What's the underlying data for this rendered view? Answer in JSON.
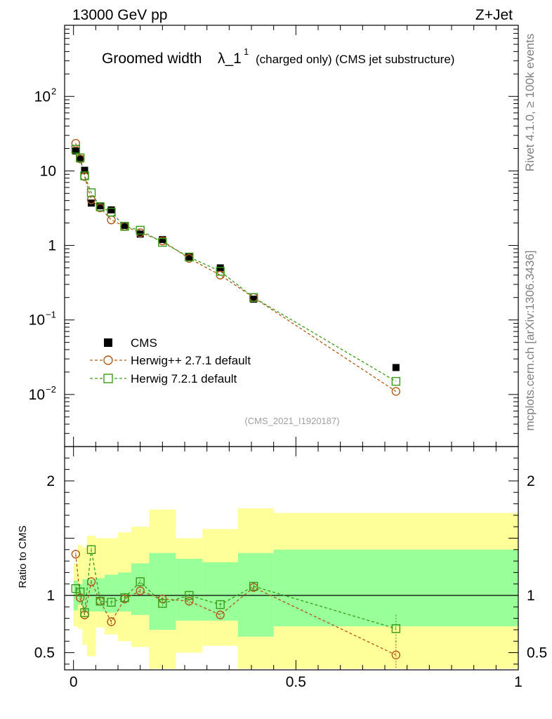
{
  "header": {
    "left": "13000 GeV pp",
    "right": "Z+Jet"
  },
  "plot_title": {
    "main": "Groomed width",
    "lambda": "λ_1",
    "sup": "1",
    "note": "(charged only) (CMS jet substructure)"
  },
  "side_texts": {
    "rivet": "Rivet 4.1.0, ≥ 100k events",
    "mcplots": "mcplots.cern.ch [arXiv:1306.3436]"
  },
  "analysis_id": "(CMS_2021_I1920187)",
  "ratio_ylabel": "Ratio to CMS",
  "colors": {
    "data": "#000000",
    "herwigpp": "#b05a1a",
    "herwig7": "#3a9a1a",
    "band_outer": "#ffff99",
    "band_inner": "#99ff99"
  },
  "chart_data": [
    {
      "type": "scatter",
      "title": "Groomed width λ_1^1 (charged only) (CMS jet substructure)",
      "yscale": "log",
      "xlim": [
        -0.02,
        1.0
      ],
      "ylim": [
        0.002,
        900
      ],
      "y_ticks": [
        {
          "value": 100,
          "label": "10",
          "sup": "2"
        },
        {
          "value": 10,
          "label": "10",
          "sup": ""
        },
        {
          "value": 1,
          "label": "1",
          "sup": ""
        },
        {
          "value": 0.1,
          "label": "10",
          "sup": "−1"
        },
        {
          "value": 0.01,
          "label": "10",
          "sup": "−2"
        }
      ],
      "x_ticks": [
        {
          "value": 0,
          "label": "0"
        },
        {
          "value": 0.5,
          "label": "0.5"
        },
        {
          "value": 1,
          "label": "1"
        }
      ],
      "legend_position": "bottom-left",
      "series": [
        {
          "name": "CMS",
          "marker": "filled-square",
          "x": [
            0.005,
            0.015,
            0.025,
            0.04,
            0.06,
            0.085,
            0.115,
            0.15,
            0.2,
            0.26,
            0.33,
            0.405,
            0.725
          ],
          "y": [
            18.5,
            14.5,
            10.2,
            3.7,
            3.4,
            3.0,
            1.85,
            1.42,
            1.2,
            0.7,
            0.5,
            0.19,
            0.023
          ]
        },
        {
          "name": "Herwig++ 2.7.1 default",
          "marker": "open-circle",
          "x": [
            0.005,
            0.015,
            0.025,
            0.04,
            0.06,
            0.085,
            0.115,
            0.15,
            0.2,
            0.26,
            0.33,
            0.405,
            0.725
          ],
          "y": [
            23.5,
            14.5,
            8.4,
            4.1,
            3.2,
            2.2,
            1.8,
            1.48,
            1.15,
            0.67,
            0.4,
            0.2,
            0.011
          ]
        },
        {
          "name": "Herwig 7.2.1 default",
          "marker": "open-square",
          "x": [
            0.005,
            0.015,
            0.025,
            0.04,
            0.06,
            0.085,
            0.115,
            0.15,
            0.2,
            0.26,
            0.33,
            0.405,
            0.725
          ],
          "y": [
            19.5,
            15.0,
            8.6,
            5.1,
            3.3,
            2.8,
            1.8,
            1.6,
            1.1,
            0.7,
            0.45,
            0.2,
            0.015
          ]
        }
      ]
    },
    {
      "type": "scatter",
      "ylabel": "Ratio to CMS",
      "xlim": [
        -0.02,
        1.0
      ],
      "ylim": [
        0.35,
        2.3
      ],
      "y_ticks": [
        {
          "value": 2,
          "label": "2"
        },
        {
          "value": 1,
          "label": "1"
        },
        {
          "value": 0.5,
          "label": "0.5"
        }
      ],
      "reference_line": 1,
      "uncertainty_bands": {
        "edges": [
          0.0,
          0.01,
          0.02,
          0.03,
          0.05,
          0.07,
          0.1,
          0.13,
          0.17,
          0.23,
          0.29,
          0.37,
          0.45,
          1.0
        ],
        "inner_lo": [
          0.87,
          0.92,
          0.86,
          0.86,
          0.86,
          0.85,
          0.86,
          0.83,
          0.7,
          0.78,
          0.78,
          0.64,
          0.73
        ],
        "inner_hi": [
          1.13,
          1.1,
          1.14,
          1.14,
          1.15,
          1.18,
          1.2,
          1.28,
          1.37,
          1.32,
          1.29,
          1.37,
          1.4
        ],
        "outer_lo": [
          0.73,
          0.71,
          0.57,
          0.47,
          0.72,
          0.66,
          0.6,
          0.55,
          0.36,
          0.5,
          0.56,
          0.36,
          0.36
        ],
        "outer_hi": [
          1.28,
          1.44,
          1.42,
          1.52,
          1.5,
          1.5,
          1.55,
          1.6,
          1.75,
          1.5,
          1.58,
          1.76,
          1.72
        ]
      },
      "series": [
        {
          "name": "Herwig++ 2.7.1 default",
          "x": [
            0.005,
            0.015,
            0.025,
            0.04,
            0.06,
            0.085,
            0.115,
            0.15,
            0.2,
            0.26,
            0.33,
            0.405,
            0.725
          ],
          "y": [
            1.36,
            0.98,
            0.83,
            1.12,
            0.95,
            0.77,
            0.97,
            1.04,
            0.97,
            0.95,
            0.83,
            1.07,
            0.48
          ]
        },
        {
          "name": "Herwig 7.2.1 default",
          "x": [
            0.005,
            0.015,
            0.025,
            0.04,
            0.06,
            0.085,
            0.115,
            0.15,
            0.2,
            0.26,
            0.33,
            0.405,
            0.725
          ],
          "y": [
            1.06,
            1.03,
            0.85,
            1.4,
            0.95,
            0.94,
            0.98,
            1.12,
            0.93,
            1.0,
            0.92,
            1.08,
            0.71
          ]
        }
      ]
    }
  ]
}
